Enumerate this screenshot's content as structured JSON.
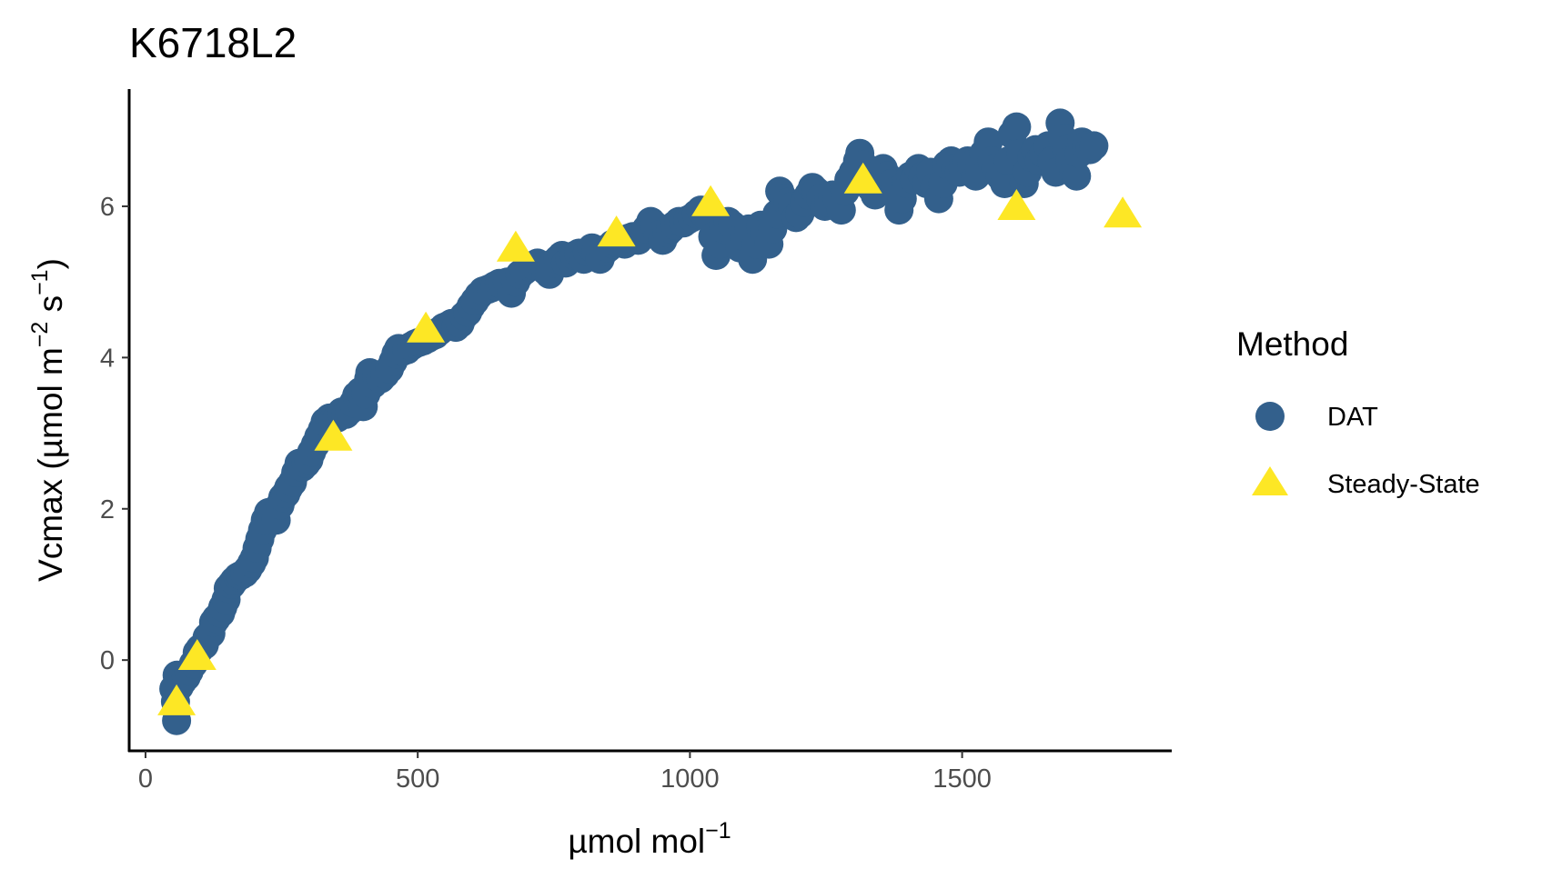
{
  "chart_data": {
    "type": "scatter",
    "title": "K6718L2",
    "xlabel": {
      "base": "µmol mol",
      "sup": "−1"
    },
    "ylabel": {
      "pre": "Vcmax (µmol m",
      "sup1": "−2",
      "mid": " s",
      "sup2": "−1",
      "post": ")"
    },
    "xlim": [
      -30,
      1885
    ],
    "ylim": [
      -1.2,
      7.55
    ],
    "x_ticks": [
      0,
      500,
      1000,
      1500
    ],
    "x_tick_labels": [
      "0",
      "500",
      "1000",
      "1500"
    ],
    "y_ticks": [
      0,
      2,
      4,
      6
    ],
    "y_tick_labels": [
      "0",
      "2",
      "4",
      "6"
    ],
    "grid": false,
    "legend": {
      "title": "Method",
      "position": "right",
      "entries": [
        {
          "label": "DAT",
          "shape": "circle",
          "color": "#33608c"
        },
        {
          "label": "Steady-State",
          "shape": "triangle",
          "color": "#fde725"
        }
      ]
    },
    "series": [
      {
        "name": "DAT",
        "shape": "circle",
        "color": "#33608c",
        "points": [
          [
            57,
            -0.8
          ],
          [
            55,
            -0.55
          ],
          [
            52,
            -0.38
          ],
          [
            58,
            -0.2
          ],
          [
            62,
            -0.35
          ],
          [
            68,
            -0.28
          ],
          [
            75,
            -0.22
          ],
          [
            80,
            -0.15
          ],
          [
            88,
            -0.05
          ],
          [
            95,
            0.1
          ],
          [
            100,
            0.15
          ],
          [
            108,
            0.2
          ],
          [
            113,
            0.3
          ],
          [
            120,
            0.35
          ],
          [
            125,
            0.5
          ],
          [
            130,
            0.55
          ],
          [
            138,
            0.62
          ],
          [
            142,
            0.7
          ],
          [
            148,
            0.8
          ],
          [
            152,
            0.95
          ],
          [
            158,
            1.0
          ],
          [
            163,
            1.05
          ],
          [
            170,
            1.1
          ],
          [
            175,
            1.12
          ],
          [
            182,
            1.15
          ],
          [
            188,
            1.2
          ],
          [
            195,
            1.28
          ],
          [
            200,
            1.35
          ],
          [
            205,
            1.48
          ],
          [
            210,
            1.6
          ],
          [
            215,
            1.72
          ],
          [
            220,
            1.85
          ],
          [
            226,
            1.95
          ],
          [
            232,
            1.9
          ],
          [
            240,
            1.85
          ],
          [
            247,
            2.05
          ],
          [
            252,
            2.15
          ],
          [
            258,
            2.2
          ],
          [
            263,
            2.28
          ],
          [
            270,
            2.35
          ],
          [
            276,
            2.48
          ],
          [
            282,
            2.6
          ],
          [
            288,
            2.55
          ],
          [
            295,
            2.6
          ],
          [
            300,
            2.65
          ],
          [
            305,
            2.75
          ],
          [
            312,
            2.85
          ],
          [
            318,
            2.95
          ],
          [
            325,
            3.05
          ],
          [
            330,
            3.15
          ],
          [
            338,
            3.2
          ],
          [
            345,
            3.18
          ],
          [
            352,
            3.2
          ],
          [
            360,
            3.28
          ],
          [
            368,
            3.25
          ],
          [
            375,
            3.3
          ],
          [
            382,
            3.4
          ],
          [
            388,
            3.5
          ],
          [
            395,
            3.55
          ],
          [
            400,
            3.35
          ],
          [
            405,
            3.52
          ],
          [
            410,
            3.72
          ],
          [
            412,
            3.8
          ],
          [
            418,
            3.65
          ],
          [
            425,
            3.75
          ],
          [
            432,
            3.72
          ],
          [
            440,
            3.78
          ],
          [
            448,
            3.85
          ],
          [
            455,
            3.95
          ],
          [
            460,
            4.05
          ],
          [
            465,
            4.12
          ],
          [
            472,
            4.08
          ],
          [
            480,
            4.1
          ],
          [
            488,
            4.15
          ],
          [
            495,
            4.18
          ],
          [
            502,
            4.2
          ],
          [
            510,
            4.22
          ],
          [
            518,
            4.25
          ],
          [
            525,
            4.28
          ],
          [
            532,
            4.3
          ],
          [
            540,
            4.35
          ],
          [
            548,
            4.4
          ],
          [
            555,
            4.42
          ],
          [
            562,
            4.45
          ],
          [
            570,
            4.4
          ],
          [
            578,
            4.45
          ],
          [
            585,
            4.55
          ],
          [
            592,
            4.6
          ],
          [
            598,
            4.68
          ],
          [
            605,
            4.75
          ],
          [
            612,
            4.82
          ],
          [
            620,
            4.88
          ],
          [
            628,
            4.9
          ],
          [
            635,
            4.92
          ],
          [
            642,
            4.95
          ],
          [
            650,
            4.98
          ],
          [
            658,
            4.95
          ],
          [
            665,
            5.0
          ],
          [
            672,
            4.85
          ],
          [
            680,
            5.0
          ],
          [
            688,
            5.1
          ],
          [
            696,
            5.15
          ],
          [
            705,
            5.2
          ],
          [
            712,
            5.22
          ],
          [
            720,
            5.25
          ],
          [
            728,
            5.2
          ],
          [
            735,
            5.15
          ],
          [
            742,
            5.1
          ],
          [
            750,
            5.25
          ],
          [
            758,
            5.3
          ],
          [
            765,
            5.35
          ],
          [
            772,
            5.25
          ],
          [
            780,
            5.3
          ],
          [
            788,
            5.35
          ],
          [
            796,
            5.38
          ],
          [
            805,
            5.3
          ],
          [
            812,
            5.4
          ],
          [
            820,
            5.45
          ],
          [
            828,
            5.42
          ],
          [
            835,
            5.3
          ],
          [
            842,
            5.4
          ],
          [
            850,
            5.45
          ],
          [
            858,
            5.5
          ],
          [
            865,
            5.52
          ],
          [
            872,
            5.55
          ],
          [
            880,
            5.5
          ],
          [
            888,
            5.58
          ],
          [
            896,
            5.6
          ],
          [
            905,
            5.55
          ],
          [
            912,
            5.6
          ],
          [
            920,
            5.7
          ],
          [
            928,
            5.8
          ],
          [
            935,
            5.75
          ],
          [
            942,
            5.62
          ],
          [
            950,
            5.55
          ],
          [
            958,
            5.65
          ],
          [
            965,
            5.7
          ],
          [
            972,
            5.75
          ],
          [
            980,
            5.8
          ],
          [
            988,
            5.78
          ],
          [
            996,
            5.82
          ],
          [
            1004,
            5.85
          ],
          [
            1012,
            5.9
          ],
          [
            1020,
            5.95
          ],
          [
            1028,
            5.88
          ],
          [
            1035,
            5.85
          ],
          [
            1042,
            5.6
          ],
          [
            1048,
            5.35
          ],
          [
            1055,
            5.5
          ],
          [
            1062,
            5.7
          ],
          [
            1070,
            5.8
          ],
          [
            1078,
            5.75
          ],
          [
            1085,
            5.55
          ],
          [
            1092,
            5.45
          ],
          [
            1100,
            5.6
          ],
          [
            1108,
            5.7
          ],
          [
            1115,
            5.3
          ],
          [
            1122,
            5.5
          ],
          [
            1130,
            5.75
          ],
          [
            1138,
            5.65
          ],
          [
            1145,
            5.5
          ],
          [
            1152,
            5.7
          ],
          [
            1160,
            5.9
          ],
          [
            1165,
            6.2
          ],
          [
            1172,
            6.1
          ],
          [
            1180,
            6.05
          ],
          [
            1188,
            6.0
          ],
          [
            1195,
            5.85
          ],
          [
            1202,
            5.9
          ],
          [
            1210,
            6.05
          ],
          [
            1218,
            6.15
          ],
          [
            1225,
            6.25
          ],
          [
            1232,
            6.2
          ],
          [
            1240,
            6.1
          ],
          [
            1248,
            6.0
          ],
          [
            1255,
            6.05
          ],
          [
            1262,
            6.15
          ],
          [
            1270,
            6.1
          ],
          [
            1278,
            5.95
          ],
          [
            1285,
            6.2
          ],
          [
            1292,
            6.35
          ],
          [
            1300,
            6.45
          ],
          [
            1308,
            6.6
          ],
          [
            1312,
            6.7
          ],
          [
            1318,
            6.55
          ],
          [
            1325,
            6.4
          ],
          [
            1332,
            6.25
          ],
          [
            1340,
            6.15
          ],
          [
            1348,
            6.3
          ],
          [
            1355,
            6.5
          ],
          [
            1362,
            6.4
          ],
          [
            1370,
            6.3
          ],
          [
            1378,
            6.2
          ],
          [
            1384,
            5.95
          ],
          [
            1390,
            6.1
          ],
          [
            1398,
            6.3
          ],
          [
            1405,
            6.4
          ],
          [
            1412,
            6.35
          ],
          [
            1420,
            6.5
          ],
          [
            1428,
            6.4
          ],
          [
            1435,
            6.3
          ],
          [
            1442,
            6.45
          ],
          [
            1450,
            6.25
          ],
          [
            1457,
            6.1
          ],
          [
            1465,
            6.3
          ],
          [
            1472,
            6.55
          ],
          [
            1480,
            6.6
          ],
          [
            1488,
            6.5
          ],
          [
            1495,
            6.45
          ],
          [
            1502,
            6.5
          ],
          [
            1510,
            6.6
          ],
          [
            1518,
            6.55
          ],
          [
            1525,
            6.4
          ],
          [
            1532,
            6.5
          ],
          [
            1540,
            6.7
          ],
          [
            1548,
            6.85
          ],
          [
            1555,
            6.6
          ],
          [
            1562,
            6.5
          ],
          [
            1570,
            6.4
          ],
          [
            1578,
            6.3
          ],
          [
            1585,
            6.6
          ],
          [
            1592,
            6.95
          ],
          [
            1600,
            7.05
          ],
          [
            1608,
            6.7
          ],
          [
            1614,
            6.3
          ],
          [
            1620,
            6.45
          ],
          [
            1628,
            6.65
          ],
          [
            1635,
            6.75
          ],
          [
            1642,
            6.6
          ],
          [
            1650,
            6.7
          ],
          [
            1658,
            6.8
          ],
          [
            1665,
            6.6
          ],
          [
            1672,
            6.45
          ],
          [
            1680,
            7.1
          ],
          [
            1685,
            6.9
          ],
          [
            1692,
            6.75
          ],
          [
            1698,
            6.6
          ],
          [
            1705,
            6.45
          ],
          [
            1710,
            6.4
          ],
          [
            1715,
            6.7
          ],
          [
            1720,
            6.85
          ],
          [
            1728,
            6.8
          ],
          [
            1735,
            6.75
          ],
          [
            1742,
            6.8
          ]
        ]
      },
      {
        "name": "Steady-State",
        "shape": "triangle",
        "color": "#fde725",
        "points": [
          [
            57,
            -0.55
          ],
          [
            95,
            0.05
          ],
          [
            345,
            2.95
          ],
          [
            515,
            4.38
          ],
          [
            680,
            5.45
          ],
          [
            865,
            5.65
          ],
          [
            1038,
            6.05
          ],
          [
            1318,
            6.35
          ],
          [
            1600,
            6.0
          ],
          [
            1795,
            5.9
          ]
        ]
      }
    ]
  }
}
